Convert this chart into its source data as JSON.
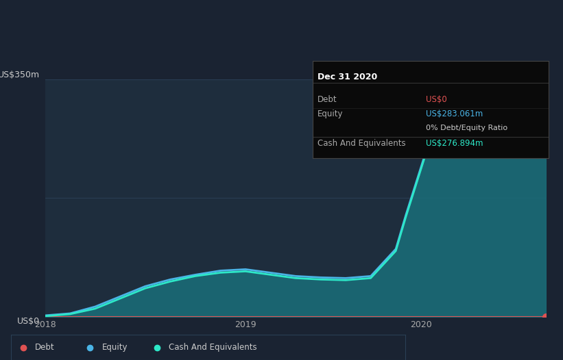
{
  "bg_color": "#1a2332",
  "plot_bg_color": "#1e2d3d",
  "grid_color": "#2a3f55",
  "title_label": "US$350m",
  "zero_label": "US$0",
  "x_ticks": [
    "2018",
    "2019",
    "2020"
  ],
  "y_max": 350,
  "y_min": 0,
  "tooltip_title": "Dec 31 2020",
  "tooltip_bg": "#0a0a0a",
  "tooltip_border": "#2a3f55",
  "tooltip_rows": [
    {
      "label": "Debt",
      "value": "US$0",
      "value_color": "#e05252"
    },
    {
      "label": "Equity",
      "value": "US$283.061m",
      "value_color": "#4ab4e6"
    },
    {
      "label": "",
      "value": "0% Debt/Equity Ratio",
      "value_color": "#cccccc",
      "bold_prefix": "0%"
    },
    {
      "label": "Cash And Equivalents",
      "value": "US$276.894m",
      "value_color": "#2de8c8"
    }
  ],
  "debt_color": "#e05252",
  "equity_color": "#4ab4e6",
  "cash_color": "#2de8c8",
  "cash_fill_color": "#1a6e7a",
  "legend_items": [
    {
      "label": "Debt",
      "color": "#e05252"
    },
    {
      "label": "Equity",
      "color": "#4ab4e6"
    },
    {
      "label": "Cash And Equivalents",
      "color": "#2de8c8"
    }
  ],
  "t_debt": [
    0.0,
    0.05,
    0.1,
    0.15,
    0.2,
    0.25,
    0.3,
    0.35,
    0.4,
    0.45,
    0.5,
    0.55,
    0.6,
    0.65,
    0.7,
    0.75,
    0.8,
    0.85,
    0.9,
    0.95,
    1.0
  ],
  "v_debt": [
    0,
    0,
    0,
    0,
    0,
    0,
    0,
    0,
    0,
    0,
    0,
    0,
    0,
    0,
    0,
    0,
    0,
    0,
    0,
    0,
    0
  ],
  "t_equity": [
    0.0,
    0.05,
    0.1,
    0.15,
    0.2,
    0.25,
    0.3,
    0.35,
    0.4,
    0.45,
    0.5,
    0.55,
    0.6,
    0.65,
    0.7,
    0.72,
    0.75,
    0.78,
    0.8,
    0.85,
    0.88,
    0.9,
    0.93,
    0.95,
    0.97,
    1.0
  ],
  "v_equity": [
    2,
    5,
    15,
    30,
    45,
    55,
    62,
    68,
    70,
    65,
    60,
    58,
    57,
    60,
    100,
    150,
    220,
    290,
    320,
    335,
    330,
    310,
    295,
    290,
    287,
    283
  ],
  "t_cash": [
    0.0,
    0.05,
    0.1,
    0.15,
    0.2,
    0.25,
    0.3,
    0.35,
    0.4,
    0.45,
    0.5,
    0.55,
    0.6,
    0.65,
    0.7,
    0.72,
    0.75,
    0.78,
    0.8,
    0.85,
    0.88,
    0.9,
    0.93,
    0.95,
    0.97,
    1.0
  ],
  "v_cash": [
    1,
    4,
    12,
    27,
    42,
    52,
    60,
    65,
    67,
    62,
    57,
    55,
    54,
    57,
    97,
    147,
    217,
    287,
    317,
    330,
    325,
    305,
    290,
    285,
    282,
    277
  ]
}
